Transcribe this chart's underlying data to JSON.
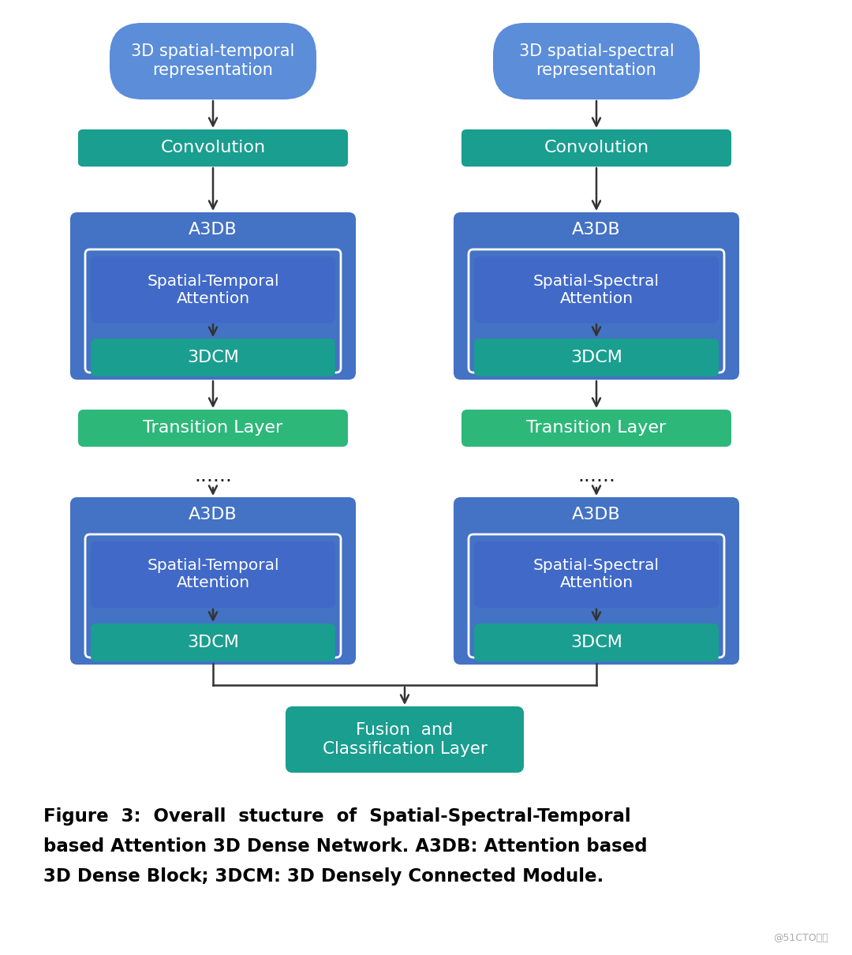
{
  "bg_color": "#ffffff",
  "colors": {
    "blue_oval": "#5b8dd9",
    "teal_conv": "#1a9e8f",
    "blue_a3db_outer": "#4472c4",
    "blue_attn": "#4169c8",
    "teal_dcm": "#1a9e8f",
    "green_trans": "#2db87a",
    "teal_fusion": "#1a9e8f",
    "inner_border": "#ffffff",
    "arrow": "#333333"
  },
  "caption_line1": "Figure  3:  Overall  stucture  of  Spatial-Spectral-Temporal",
  "caption_line2": "based Attention 3D Dense Network. A3DB: Attention based",
  "caption_line3": "3D Dense Block; 3DCM: 3D Densely Connected Module.",
  "watermark": "@51CTO博客"
}
